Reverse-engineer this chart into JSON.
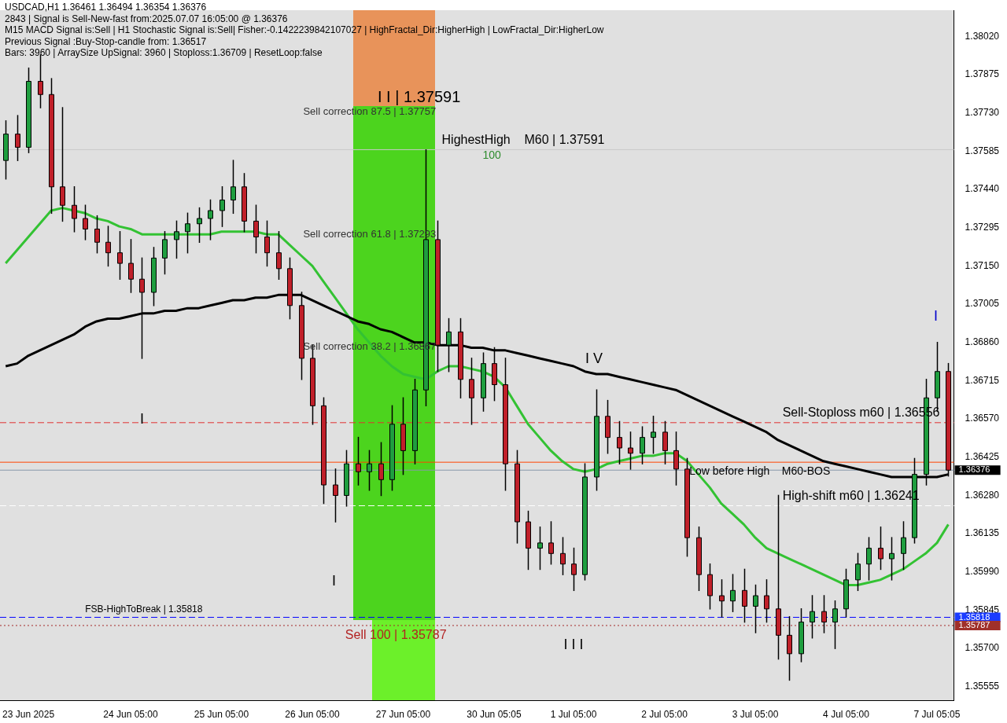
{
  "chart_data": {
    "type": "candlestick",
    "title": "USDCAD,H1  1.36461 1.36494 1.36354 1.36376",
    "categories": [
      null,
      null,
      "23 Jun 2025",
      null,
      null,
      null,
      null,
      null,
      null,
      null,
      null,
      "24 Jun 05:00",
      null,
      null,
      null,
      null,
      null,
      null,
      null,
      "25 Jun 05:00",
      null,
      null,
      null,
      null,
      null,
      null,
      null,
      "26 Jun 05:00",
      null,
      null,
      null,
      null,
      null,
      null,
      null,
      "27 Jun 05:00",
      null,
      null,
      null,
      null,
      null,
      null,
      null,
      "30 Jun 05:05",
      null,
      null,
      null,
      null,
      null,
      null,
      "1 Jul 05:00",
      null,
      null,
      null,
      null,
      null,
      null,
      null,
      "2 Jul 05:00",
      null,
      null,
      null,
      null,
      null,
      null,
      null,
      "3 Jul 05:00",
      null,
      null,
      null,
      null,
      null,
      null,
      null,
      "4 Jul 05:00",
      null,
      null,
      null,
      null,
      null,
      null,
      null,
      "7 Jul 05:05",
      null
    ],
    "ohlc": [
      [
        1.3755,
        1.377,
        1.3748,
        1.3765
      ],
      [
        1.3765,
        1.3772,
        1.3755,
        1.376
      ],
      [
        1.376,
        1.379,
        1.3758,
        1.3785
      ],
      [
        1.3785,
        1.3795,
        1.3775,
        1.378
      ],
      [
        1.378,
        1.3786,
        1.3735,
        1.3745
      ],
      [
        1.3745,
        1.3775,
        1.3732,
        1.3738
      ],
      [
        1.3738,
        1.3745,
        1.3728,
        1.3733
      ],
      [
        1.3733,
        1.3738,
        1.3725,
        1.3729
      ],
      [
        1.3729,
        1.3734,
        1.372,
        1.3724
      ],
      [
        1.3724,
        1.373,
        1.3715,
        1.372
      ],
      [
        1.372,
        1.3728,
        1.371,
        1.3716
      ],
      [
        1.3716,
        1.3725,
        1.3705,
        1.371
      ],
      [
        1.371,
        1.3718,
        1.368,
        1.3705
      ],
      [
        1.3705,
        1.3722,
        1.37,
        1.3718
      ],
      [
        1.3718,
        1.3728,
        1.3712,
        1.3725
      ],
      [
        1.3725,
        1.3732,
        1.3718,
        1.3728
      ],
      [
        1.3728,
        1.3735,
        1.372,
        1.3731
      ],
      [
        1.3731,
        1.3737,
        1.3724,
        1.3733
      ],
      [
        1.3733,
        1.374,
        1.3725,
        1.3736
      ],
      [
        1.3736,
        1.3745,
        1.373,
        1.374
      ],
      [
        1.374,
        1.3755,
        1.3735,
        1.3745
      ],
      [
        1.3745,
        1.375,
        1.3728,
        1.3732
      ],
      [
        1.3732,
        1.3738,
        1.372,
        1.3726
      ],
      [
        1.3726,
        1.3732,
        1.3715,
        1.372
      ],
      [
        1.372,
        1.3728,
        1.371,
        1.3714
      ],
      [
        1.3714,
        1.3718,
        1.3695,
        1.37
      ],
      [
        1.37,
        1.3705,
        1.3672,
        1.368
      ],
      [
        1.368,
        1.3685,
        1.3655,
        1.3662
      ],
      [
        1.3662,
        1.3665,
        1.3625,
        1.3632
      ],
      [
        1.3632,
        1.3638,
        1.3618,
        1.3628
      ],
      [
        1.3628,
        1.3645,
        1.3624,
        1.364
      ],
      [
        1.364,
        1.365,
        1.3632,
        1.3637
      ],
      [
        1.3637,
        1.3645,
        1.363,
        1.364
      ],
      [
        1.364,
        1.3648,
        1.3628,
        1.3634
      ],
      [
        1.3634,
        1.3662,
        1.363,
        1.3655
      ],
      [
        1.3655,
        1.3665,
        1.3636,
        1.3645
      ],
      [
        1.3645,
        1.3672,
        1.364,
        1.3668
      ],
      [
        1.3668,
        1.3759,
        1.3662,
        1.3725
      ],
      [
        1.3725,
        1.3732,
        1.3675,
        1.3685
      ],
      [
        1.3685,
        1.3695,
        1.3675,
        1.369
      ],
      [
        1.369,
        1.3695,
        1.3665,
        1.3672
      ],
      [
        1.3672,
        1.368,
        1.3655,
        1.3665
      ],
      [
        1.3665,
        1.3682,
        1.366,
        1.3678
      ],
      [
        1.3678,
        1.3684,
        1.3664,
        1.367
      ],
      [
        1.367,
        1.368,
        1.363,
        1.364
      ],
      [
        1.364,
        1.3645,
        1.361,
        1.3618
      ],
      [
        1.3618,
        1.3622,
        1.36,
        1.3608
      ],
      [
        1.3608,
        1.3616,
        1.36,
        1.361
      ],
      [
        1.361,
        1.3618,
        1.3602,
        1.3606
      ],
      [
        1.3606,
        1.3612,
        1.3598,
        1.3602
      ],
      [
        1.3602,
        1.3608,
        1.3592,
        1.3598
      ],
      [
        1.3598,
        1.364,
        1.3596,
        1.3635
      ],
      [
        1.3635,
        1.3668,
        1.363,
        1.3658
      ],
      [
        1.3658,
        1.3664,
        1.3644,
        1.365
      ],
      [
        1.365,
        1.3656,
        1.364,
        1.3646
      ],
      [
        1.3646,
        1.3652,
        1.3638,
        1.3644
      ],
      [
        1.3644,
        1.3654,
        1.364,
        1.365
      ],
      [
        1.365,
        1.3658,
        1.3644,
        1.3652
      ],
      [
        1.3652,
        1.3656,
        1.364,
        1.3645
      ],
      [
        1.3645,
        1.3652,
        1.3632,
        1.3638
      ],
      [
        1.3638,
        1.3642,
        1.3605,
        1.3612
      ],
      [
        1.3612,
        1.3616,
        1.3592,
        1.3598
      ],
      [
        1.3598,
        1.3602,
        1.3585,
        1.359
      ],
      [
        1.359,
        1.3596,
        1.3582,
        1.3588
      ],
      [
        1.3588,
        1.3598,
        1.3584,
        1.3592
      ],
      [
        1.3592,
        1.36,
        1.358,
        1.3586
      ],
      [
        1.3586,
        1.3594,
        1.3576,
        1.359
      ],
      [
        1.359,
        1.3596,
        1.358,
        1.3585
      ],
      [
        1.3585,
        1.3628,
        1.3566,
        1.3575
      ],
      [
        1.3575,
        1.3582,
        1.3558,
        1.3568
      ],
      [
        1.3568,
        1.3585,
        1.3565,
        1.358
      ],
      [
        1.358,
        1.359,
        1.3574,
        1.3584
      ],
      [
        1.3584,
        1.359,
        1.3576,
        1.358
      ],
      [
        1.358,
        1.3588,
        1.357,
        1.3585
      ],
      [
        1.3585,
        1.36,
        1.3582,
        1.3596
      ],
      [
        1.3596,
        1.3606,
        1.3592,
        1.3602
      ],
      [
        1.3602,
        1.3612,
        1.3596,
        1.3608
      ],
      [
        1.3608,
        1.3616,
        1.36,
        1.3604
      ],
      [
        1.3604,
        1.3612,
        1.3596,
        1.3606
      ],
      [
        1.3606,
        1.3618,
        1.36,
        1.3612
      ],
      [
        1.3612,
        1.3642,
        1.361,
        1.3636
      ],
      [
        1.3636,
        1.3672,
        1.3632,
        1.3665
      ],
      [
        1.3665,
        1.3686,
        1.366,
        1.3675
      ],
      [
        1.3675,
        1.3678,
        1.36354,
        1.36376
      ]
    ],
    "series": [
      {
        "type": "line",
        "color": "#000000",
        "values": [
          1.3677,
          1.3678,
          1.3681,
          1.3683,
          1.3685,
          1.3687,
          1.3689,
          1.3692,
          1.3694,
          1.3695,
          1.3695,
          1.3696,
          1.3697,
          1.3697,
          1.3698,
          1.3698,
          1.3699,
          1.3699,
          1.37,
          1.3701,
          1.3702,
          1.3702,
          1.3703,
          1.3703,
          1.3704,
          1.3704,
          1.3704,
          1.3702,
          1.37,
          1.3698,
          1.3696,
          1.3694,
          1.3693,
          1.3691,
          1.369,
          1.3688,
          1.3686,
          1.3686,
          1.3685,
          1.3685,
          1.3685,
          1.3684,
          1.3684,
          1.3683,
          1.3683,
          1.3682,
          1.3681,
          1.368,
          1.3679,
          1.3678,
          1.3677,
          1.3675,
          1.3674,
          1.3674,
          1.3673,
          1.3672,
          1.3671,
          1.367,
          1.3669,
          1.3668,
          1.3666,
          1.3664,
          1.3662,
          1.366,
          1.3658,
          1.3656,
          1.3654,
          1.3652,
          1.3649,
          1.3647,
          1.3645,
          1.3643,
          1.3641,
          1.364,
          1.3639,
          1.3638,
          1.3637,
          1.3636,
          1.3635,
          1.3635,
          1.3635,
          1.3635,
          1.3635,
          1.3636
        ]
      },
      {
        "type": "line",
        "color": "#33c233",
        "values": [
          1.3716,
          1.3721,
          1.3726,
          1.3731,
          1.3736,
          1.3737,
          1.3736,
          1.3735,
          1.3733,
          1.3732,
          1.373,
          1.3729,
          1.3727,
          1.3727,
          1.3727,
          1.3727,
          1.3727,
          1.3727,
          1.3727,
          1.3728,
          1.3728,
          1.3728,
          1.3728,
          1.3727,
          1.3727,
          1.3723,
          1.3719,
          1.3715,
          1.3709,
          1.3703,
          1.3697,
          1.3691,
          1.3686,
          1.3681,
          1.3677,
          1.3674,
          1.3673,
          1.3672,
          1.3675,
          1.3677,
          1.3677,
          1.3676,
          1.3675,
          1.3673,
          1.3669,
          1.3662,
          1.3655,
          1.365,
          1.3645,
          1.3641,
          1.3638,
          1.3637,
          1.3638,
          1.364,
          1.3641,
          1.3642,
          1.3643,
          1.3643,
          1.3644,
          1.3644,
          1.3641,
          1.3636,
          1.3631,
          1.3625,
          1.3621,
          1.3617,
          1.3612,
          1.3608,
          1.3606,
          1.3604,
          1.3602,
          1.36,
          1.3598,
          1.3596,
          1.3594,
          1.3594,
          1.3595,
          1.3596,
          1.3598,
          1.36,
          1.3603,
          1.3606,
          1.361,
          1.3617
        ]
      }
    ],
    "ylim": [
      1.35502,
      1.38119
    ],
    "yticks": [
      {
        "value": 1.35555,
        "label": "1.35555"
      },
      {
        "value": 1.357,
        "label": "1.35700"
      },
      {
        "value": 1.35845,
        "label": "1.35845"
      },
      {
        "value": 1.3599,
        "label": "1.35990"
      },
      {
        "value": 1.36135,
        "label": "1.36135"
      },
      {
        "value": 1.3628,
        "label": "1.36280"
      },
      {
        "value": 1.36425,
        "label": "1.36425"
      },
      {
        "value": 1.3657,
        "label": "1.36570"
      },
      {
        "value": 1.36715,
        "label": "1.36715"
      },
      {
        "value": 1.3686,
        "label": "1.36860"
      },
      {
        "value": 1.37005,
        "label": "1.37005"
      },
      {
        "value": 1.3715,
        "label": "1.37150"
      },
      {
        "value": 1.37295,
        "label": "1.37295"
      },
      {
        "value": 1.3744,
        "label": "1.37440"
      },
      {
        "value": 1.37585,
        "label": "1.37585"
      },
      {
        "value": 1.3773,
        "label": "1.37730"
      },
      {
        "value": 1.37875,
        "label": "1.37875"
      },
      {
        "value": 1.3802,
        "label": "1.38020"
      }
    ],
    "ref_lines": [
      {
        "axis": "y",
        "value": 1.37591,
        "label": "HighestHigh    M60 | 1.37591",
        "color": "#c8c8c8",
        "line_style": "solid"
      },
      {
        "axis": "y",
        "value": 1.36556,
        "label": "Sell-Stoploss m60 | 1.36556",
        "color": "#e03030",
        "line_style": "dashed"
      },
      {
        "axis": "y",
        "value": 1.36406,
        "label": "Low before High    M60-BOS",
        "color": "#ff4500",
        "line_style": "solid"
      },
      {
        "axis": "y",
        "value": 1.36241,
        "label": "High-shift m60 | 1.36241",
        "color": "#ffffff",
        "line_style": "dashed"
      },
      {
        "axis": "y",
        "value": 1.35818,
        "label": "FSB-HighToBreak | 1.35818",
        "color": "#0000ff",
        "line_style": "dashed"
      },
      {
        "axis": "y",
        "value": 1.35787,
        "label": "Sell 100 | 1.35787",
        "color": "#a52a2a",
        "line_style": "dotted"
      },
      {
        "axis": "y",
        "value": 1.36376,
        "label": "1.36376",
        "color": "#8899aa",
        "line_style": "solid"
      }
    ],
    "annotations": [
      "2843 | Signal is Sell-New-fast from:2025.07.07 16:05:00 @ 1.36376",
      "M15 MACD Signal is:Sell | H1 Stochastic Signal is:Sell| Fisher:-0.1422239842107027 | HighFractal_Dir:HigherHigh | LowFractal_Dir:HigherLow",
      "Previous Signal :Buy-Stop-candle from: 1.36517",
      "Bars: 3960 | ArraySize UpSignal: 3960 | Stoploss:1.36709 | ResetLoop:false",
      "I I | 1.37591",
      "Sell correction 87.5 | 1.37757",
      "100",
      "Sell correction 61.8 | 1.37293",
      "Sell correction 38.2 | 1.36867",
      "I",
      "I",
      "I I I",
      "I V",
      "I",
      "1.35818",
      "1.35787"
    ]
  }
}
